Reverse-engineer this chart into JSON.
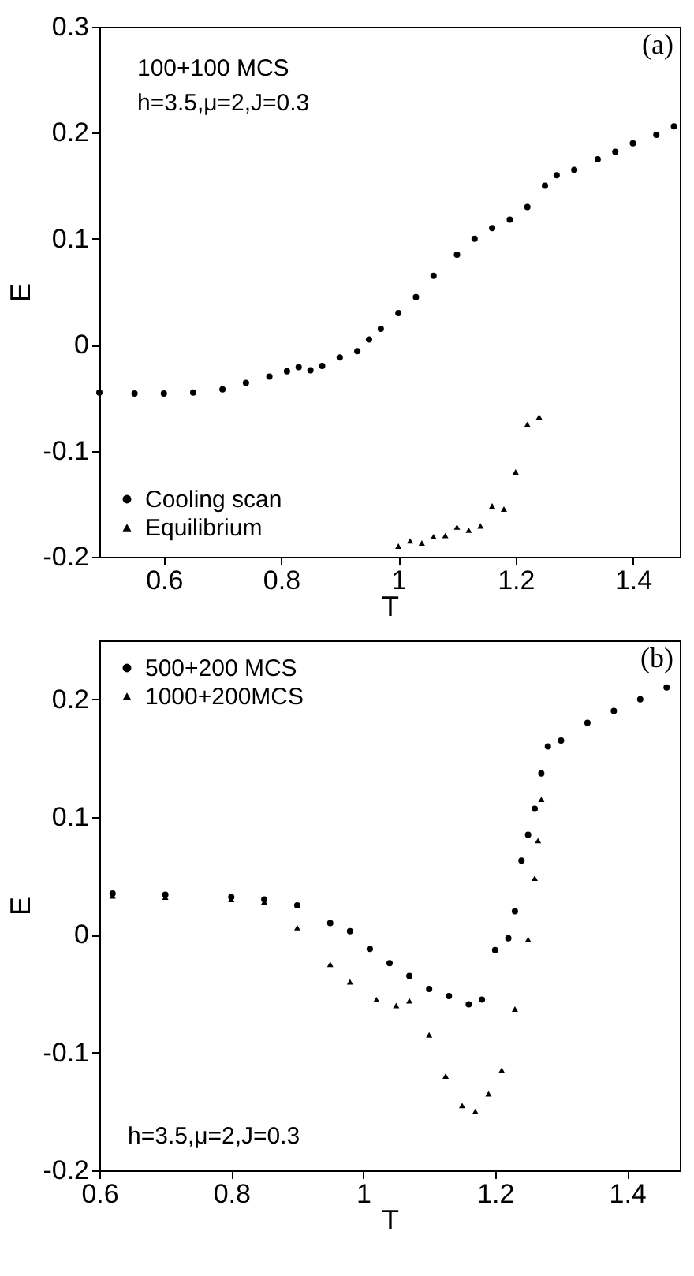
{
  "chart_data": [
    {
      "type": "scatter",
      "xlabel": "T",
      "ylabel": "E",
      "xlim": [
        0.49,
        1.48
      ],
      "ylim": [
        -0.2,
        0.3
      ],
      "xticks": [
        0.6,
        0.8,
        1,
        1.2,
        1.4
      ],
      "yticks": [
        -0.2,
        -0.1,
        0,
        0.1,
        0.2,
        0.3
      ],
      "grid": false,
      "legend": "bottom left",
      "annotations": [
        "100+100 MCS",
        "h=3.5,μ=2,J=0.3",
        "(a)"
      ],
      "series": [
        {
          "name": "Cooling scan",
          "color": "#000000",
          "marker": "circle",
          "x": [
            0.49,
            0.55,
            0.6,
            0.65,
            0.7,
            0.74,
            0.78,
            0.81,
            0.83,
            0.85,
            0.87,
            0.9,
            0.93,
            0.95,
            0.97,
            1.0,
            1.03,
            1.06,
            1.1,
            1.13,
            1.16,
            1.19,
            1.22,
            1.25,
            1.27,
            1.3,
            1.34,
            1.37,
            1.4,
            1.44,
            1.47
          ],
          "values": [
            -0.045,
            -0.046,
            -0.046,
            -0.045,
            -0.042,
            -0.036,
            -0.03,
            -0.025,
            -0.021,
            -0.024,
            -0.02,
            -0.012,
            -0.006,
            0.005,
            0.015,
            0.03,
            0.045,
            0.065,
            0.085,
            0.1,
            0.11,
            0.118,
            0.13,
            0.15,
            0.16,
            0.165,
            0.175,
            0.182,
            0.19,
            0.198,
            0.206
          ]
        },
        {
          "name": "Equilibrium",
          "color": "#000000",
          "marker": "triangle",
          "x": [
            1.0,
            1.02,
            1.04,
            1.06,
            1.08,
            1.1,
            1.12,
            1.14,
            1.16,
            1.18,
            1.2,
            1.22,
            1.24
          ],
          "values": [
            -0.19,
            -0.185,
            -0.187,
            -0.181,
            -0.18,
            -0.172,
            -0.175,
            -0.171,
            -0.152,
            -0.155,
            -0.12,
            -0.075,
            -0.068
          ]
        }
      ]
    },
    {
      "type": "scatter",
      "xlabel": "T",
      "ylabel": "E",
      "xlim": [
        0.6,
        1.48
      ],
      "ylim": [
        -0.2,
        0.25
      ],
      "xticks": [
        0.6,
        0.8,
        1,
        1.2,
        1.4
      ],
      "yticks": [
        -0.2,
        -0.1,
        0,
        0.1,
        0.2
      ],
      "grid": false,
      "legend": "top left",
      "annotations": [
        "(b)",
        "h=3.5,μ=2,J=0.3"
      ],
      "series": [
        {
          "name": "500+200 MCS",
          "color": "#000000",
          "marker": "circle",
          "x": [
            0.62,
            0.7,
            0.8,
            0.85,
            0.9,
            0.95,
            0.98,
            1.01,
            1.04,
            1.07,
            1.1,
            1.13,
            1.16,
            1.18,
            1.2,
            1.22,
            1.23,
            1.24,
            1.25,
            1.26,
            1.27,
            1.28,
            1.3,
            1.34,
            1.38,
            1.42,
            1.46
          ],
          "values": [
            0.035,
            0.034,
            0.032,
            0.03,
            0.025,
            0.01,
            0.003,
            -0.012,
            -0.024,
            -0.035,
            -0.046,
            -0.052,
            -0.059,
            -0.055,
            -0.013,
            -0.003,
            0.02,
            0.063,
            0.085,
            0.107,
            0.137,
            0.16,
            0.165,
            0.18,
            0.19,
            0.2,
            0.21
          ]
        },
        {
          "name": "1000+200MCS",
          "color": "#000000",
          "marker": "triangle",
          "x": [
            0.62,
            0.7,
            0.8,
            0.85,
            0.9,
            0.95,
            0.98,
            1.02,
            1.05,
            1.07,
            1.1,
            1.125,
            1.15,
            1.17,
            1.19,
            1.21,
            1.23,
            1.25,
            1.26,
            1.265,
            1.27
          ],
          "values": [
            0.033,
            0.032,
            0.03,
            0.028,
            0.006,
            -0.025,
            -0.04,
            -0.055,
            -0.06,
            -0.056,
            -0.085,
            -0.12,
            -0.145,
            -0.15,
            -0.135,
            -0.115,
            -0.063,
            -0.004,
            0.048,
            0.08,
            0.115
          ]
        }
      ]
    }
  ]
}
